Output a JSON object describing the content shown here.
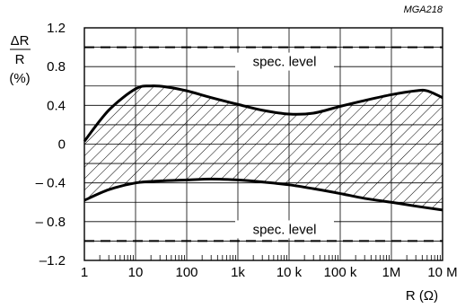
{
  "figure_code": "MGA218",
  "chart_data": {
    "type": "area",
    "title": "",
    "xlabel": "R (Ω)",
    "ylabel_lines": [
      "ΔR",
      "R",
      "(%)"
    ],
    "x_scale": "log",
    "xlim": [
      1,
      10000000
    ],
    "ylim": [
      -1.2,
      1.2
    ],
    "grid": true,
    "x_ticks": [
      {
        "value": 1,
        "label": "1"
      },
      {
        "value": 10,
        "label": "10"
      },
      {
        "value": 100,
        "label": "100"
      },
      {
        "value": 1000,
        "label": "1k"
      },
      {
        "value": 10000,
        "label": "10 k"
      },
      {
        "value": 100000,
        "label": "100 k"
      },
      {
        "value": 1000000,
        "label": "1M"
      },
      {
        "value": 10000000,
        "label": "10 M"
      }
    ],
    "y_ticks": [
      {
        "value": 1.2,
        "label": "1.2"
      },
      {
        "value": 0.8,
        "label": "0.8"
      },
      {
        "value": 0.4,
        "label": "0.4"
      },
      {
        "value": 0,
        "label": "0"
      },
      {
        "value": -0.4,
        "label": "– 0.4"
      },
      {
        "value": -0.8,
        "label": "– 0.8"
      },
      {
        "value": -1.2,
        "label": "–1.2"
      }
    ],
    "series": [
      {
        "role": "upper-bound",
        "x": [
          1,
          3,
          10,
          20,
          40,
          100,
          300,
          1000,
          3000,
          10000,
          30000,
          100000,
          300000,
          1000000,
          3000000,
          5000000,
          10000000
        ],
        "y": [
          0.03,
          0.35,
          0.57,
          0.6,
          0.59,
          0.55,
          0.48,
          0.41,
          0.35,
          0.31,
          0.32,
          0.39,
          0.45,
          0.51,
          0.55,
          0.55,
          0.48
        ]
      },
      {
        "role": "lower-bound",
        "x": [
          1,
          3,
          10,
          30,
          100,
          300,
          1000,
          3000,
          10000,
          30000,
          100000,
          300000,
          1000000,
          3000000,
          10000000
        ],
        "y": [
          -0.58,
          -0.47,
          -0.4,
          -0.38,
          -0.37,
          -0.36,
          -0.37,
          -0.39,
          -0.42,
          -0.46,
          -0.51,
          -0.56,
          -0.6,
          -0.64,
          -0.68
        ]
      }
    ],
    "reference_lines": [
      {
        "y": 1.0,
        "style": "dashed",
        "label": "spec. level"
      },
      {
        "y": -1.0,
        "style": "dashed",
        "label": "spec. level"
      }
    ],
    "fill_between": "hatched"
  }
}
